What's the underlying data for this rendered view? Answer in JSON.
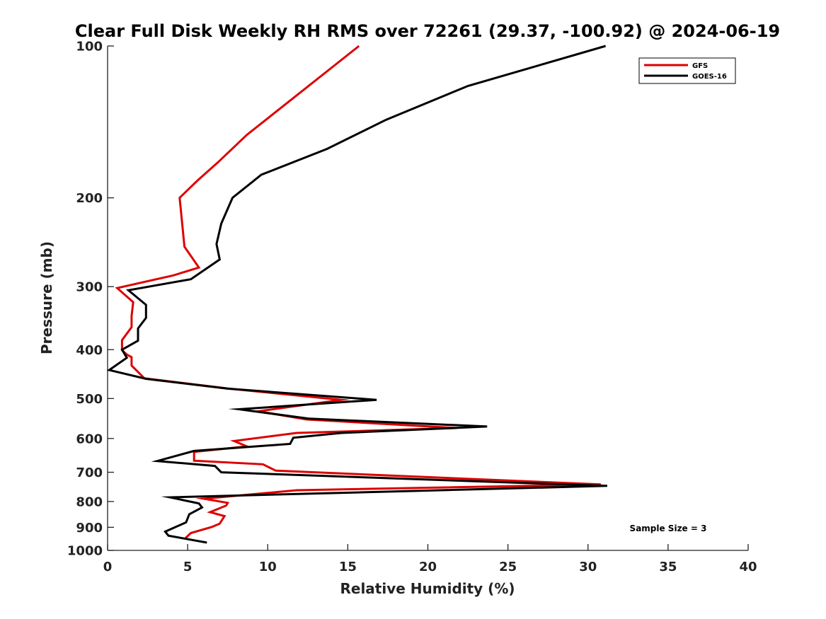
{
  "chart_data": {
    "type": "line",
    "title": "Clear Full Disk Weekly RH RMS over 72261 (29.37, -100.92) @ 2024-06-19",
    "xlabel": "Relative Humidity (%)",
    "ylabel": "Pressure (mb)",
    "xlim": [
      0,
      40
    ],
    "ylim": [
      1000,
      100
    ],
    "yscale": "log",
    "y_reversed": true,
    "x_ticks": [
      0,
      5,
      10,
      15,
      20,
      25,
      30,
      35,
      40
    ],
    "y_ticks": [
      100,
      200,
      300,
      400,
      500,
      600,
      700,
      800,
      900,
      1000
    ],
    "grid": false,
    "legend_position": "top-right",
    "annotation": "Sample Size = 3",
    "series": [
      {
        "name": "GFS",
        "color": "#dd0000",
        "points": [
          [
            15.7,
            100
          ],
          [
            8.7,
            150
          ],
          [
            6.9,
            170
          ],
          [
            5.6,
            185
          ],
          [
            4.5,
            200
          ],
          [
            4.8,
            250
          ],
          [
            5.7,
            275
          ],
          [
            4.1,
            285
          ],
          [
            0.6,
            302
          ],
          [
            1.6,
            322
          ],
          [
            1.5,
            343
          ],
          [
            1.5,
            361
          ],
          [
            0.9,
            383
          ],
          [
            0.9,
            401
          ],
          [
            1.2,
            409
          ],
          [
            1.5,
            414
          ],
          [
            1.5,
            430
          ],
          [
            2.3,
            456
          ],
          [
            7.6,
            478
          ],
          [
            14.6,
            503
          ],
          [
            9.4,
            530
          ],
          [
            12.4,
            550
          ],
          [
            21.8,
            572
          ],
          [
            11.8,
            585
          ],
          [
            7.9,
            607
          ],
          [
            8.7,
            622
          ],
          [
            5.4,
            638
          ],
          [
            5.4,
            664
          ],
          [
            9.7,
            675
          ],
          [
            10.5,
            695
          ],
          [
            30.8,
            740
          ],
          [
            11.8,
            760
          ],
          [
            6.0,
            790
          ],
          [
            7.5,
            805
          ],
          [
            7.4,
            815
          ],
          [
            6.4,
            840
          ],
          [
            7.3,
            855
          ],
          [
            7.0,
            885
          ],
          [
            6.5,
            899
          ],
          [
            5.2,
            924
          ],
          [
            4.8,
            950
          ]
        ]
      },
      {
        "name": "GOES-16",
        "color": "#000000",
        "points": [
          [
            31.1,
            100
          ],
          [
            22.5,
            120
          ],
          [
            17.4,
            140
          ],
          [
            13.7,
            160
          ],
          [
            9.6,
            180
          ],
          [
            7.8,
            200
          ],
          [
            7.1,
            225
          ],
          [
            6.8,
            247
          ],
          [
            7.0,
            265
          ],
          [
            5.2,
            290
          ],
          [
            1.3,
            305
          ],
          [
            2.4,
            326
          ],
          [
            2.4,
            346
          ],
          [
            1.9,
            363
          ],
          [
            1.9,
            384
          ],
          [
            0.9,
            400
          ],
          [
            1.2,
            415
          ],
          [
            0.1,
            439
          ],
          [
            2.4,
            457
          ],
          [
            7.5,
            478
          ],
          [
            16.8,
            503
          ],
          [
            8.2,
            525
          ],
          [
            12.6,
            548
          ],
          [
            23.7,
            568
          ],
          [
            14.6,
            585
          ],
          [
            11.6,
            598
          ],
          [
            11.4,
            615
          ],
          [
            5.4,
            635
          ],
          [
            3.1,
            665
          ],
          [
            6.7,
            680
          ],
          [
            7.1,
            700
          ],
          [
            31.2,
            745
          ],
          [
            3.9,
            785
          ],
          [
            5.7,
            807
          ],
          [
            5.9,
            822
          ],
          [
            5.1,
            848
          ],
          [
            4.9,
            880
          ],
          [
            3.6,
            918
          ],
          [
            3.8,
            935
          ],
          [
            6.2,
            965
          ]
        ]
      }
    ]
  }
}
